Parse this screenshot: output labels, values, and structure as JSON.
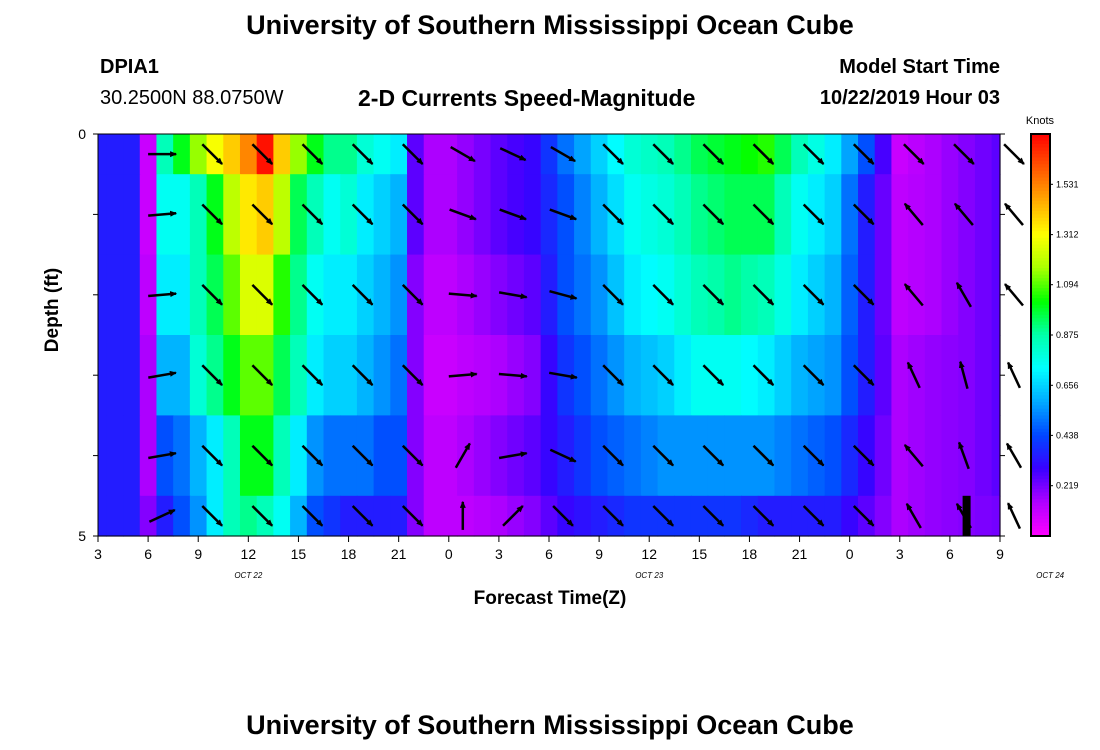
{
  "header": {
    "title": "University of Southern Mississippi Ocean Cube",
    "station_id": "DPIA1",
    "station_coords": "30.2500N 88.0750W",
    "plot_title": "2-D Currents Speed-Magnitude",
    "model_label": "Model Start Time",
    "model_time": "10/22/2019 Hour 03",
    "footer_title": "University of Southern Mississippi Ocean Cube"
  },
  "chart_data": {
    "type": "heatmap",
    "title": "2-D Currents Speed-Magnitude",
    "xlabel": "Forecast Time(Z)",
    "ylabel": "Depth (ft)",
    "colorbar_label": "Knots",
    "colorbar_ticks": [
      "1.531",
      "1.312",
      "1.094",
      "0.875",
      "0.656",
      "0.438",
      "0.219"
    ],
    "colorbar_range": [
      0,
      1.75
    ],
    "x_tick_labels": [
      "3",
      "6",
      "9",
      "12",
      "15",
      "18",
      "21",
      "0",
      "3",
      "6",
      "9",
      "12",
      "15",
      "18",
      "21",
      "0",
      "3",
      "6",
      "9"
    ],
    "x_range_hours": [
      3,
      57
    ],
    "date_labels": [
      {
        "label": "OCT 22",
        "hour": 12
      },
      {
        "label": "OCT 23",
        "hour": 36
      },
      {
        "label": "OCT 24",
        "hour": 60
      }
    ],
    "y_tick_labels": [
      "0",
      "5"
    ],
    "ylim": [
      0,
      5
    ],
    "depth_layers_ft": [
      0.25,
      1,
      2,
      3,
      4,
      4.75
    ],
    "time_hours": [
      3,
      4,
      5,
      6,
      7,
      8,
      9,
      10,
      11,
      12,
      13,
      14,
      15,
      16,
      17,
      18,
      19,
      20,
      21,
      22,
      23,
      24,
      25,
      26,
      27,
      28,
      29,
      30,
      31,
      32,
      33,
      34,
      35,
      36,
      37,
      38,
      39,
      40,
      41,
      42,
      43,
      44,
      45,
      46,
      47,
      48,
      49,
      50,
      51,
      52,
      53,
      54,
      55,
      56,
      57
    ],
    "speed_anchor_hours": [
      3,
      5,
      6,
      6.5,
      7,
      7.5,
      8,
      9,
      10,
      11,
      12,
      12.5,
      13,
      14,
      15,
      16,
      17,
      18,
      19,
      20,
      21,
      22,
      23,
      24,
      25,
      27,
      29,
      31,
      33,
      35,
      37,
      39,
      41,
      43,
      45,
      47,
      49,
      51,
      53,
      55,
      57
    ],
    "speed_knots": [
      [
        0.35,
        0.35,
        0.1,
        0.45,
        0.85,
        0.9,
        1.0,
        1.15,
        1.3,
        1.4,
        1.52,
        1.65,
        1.72,
        1.4,
        1.15,
        1.0,
        0.9,
        0.9,
        0.8,
        0.75,
        0.7,
        0.25,
        0.15,
        0.15,
        0.18,
        0.25,
        0.3,
        0.5,
        0.65,
        0.8,
        0.85,
        0.95,
        1.0,
        1.05,
        0.85,
        0.7,
        0.45,
        0.1,
        0.15,
        0.2,
        0.25
      ],
      [
        0.35,
        0.35,
        0.1,
        0.35,
        0.75,
        0.7,
        0.75,
        0.85,
        1.0,
        1.2,
        1.35,
        1.42,
        1.4,
        1.2,
        0.95,
        0.85,
        0.75,
        0.8,
        0.7,
        0.65,
        0.6,
        0.25,
        0.15,
        0.15,
        0.18,
        0.25,
        0.3,
        0.45,
        0.6,
        0.75,
        0.8,
        0.9,
        0.95,
        0.95,
        0.75,
        0.65,
        0.35,
        0.12,
        0.15,
        0.2,
        0.25
      ],
      [
        0.35,
        0.35,
        0.12,
        0.35,
        0.7,
        0.65,
        0.7,
        0.85,
        0.95,
        1.1,
        1.25,
        1.28,
        1.25,
        1.05,
        0.9,
        0.75,
        0.7,
        0.7,
        0.65,
        0.6,
        0.55,
        0.2,
        0.12,
        0.12,
        0.15,
        0.2,
        0.25,
        0.45,
        0.55,
        0.7,
        0.75,
        0.85,
        0.9,
        0.85,
        0.7,
        0.6,
        0.35,
        0.12,
        0.15,
        0.2,
        0.25
      ],
      [
        0.35,
        0.35,
        0.15,
        0.35,
        0.6,
        0.55,
        0.6,
        0.8,
        0.9,
        1.0,
        1.1,
        1.12,
        1.1,
        0.95,
        0.85,
        0.7,
        0.65,
        0.65,
        0.6,
        0.55,
        0.5,
        0.2,
        0.1,
        0.1,
        0.12,
        0.15,
        0.2,
        0.4,
        0.5,
        0.6,
        0.65,
        0.75,
        0.75,
        0.7,
        0.6,
        0.55,
        0.35,
        0.15,
        0.18,
        0.2,
        0.25
      ],
      [
        0.35,
        0.35,
        0.15,
        0.35,
        0.45,
        0.45,
        0.5,
        0.6,
        0.7,
        0.85,
        1.0,
        1.02,
        1.0,
        0.85,
        0.7,
        0.55,
        0.5,
        0.5,
        0.5,
        0.45,
        0.45,
        0.2,
        0.12,
        0.12,
        0.15,
        0.2,
        0.25,
        0.35,
        0.45,
        0.5,
        0.55,
        0.55,
        0.55,
        0.55,
        0.5,
        0.45,
        0.3,
        0.15,
        0.18,
        0.2,
        0.25
      ],
      [
        0.35,
        0.35,
        0.2,
        0.35,
        0.35,
        0.35,
        0.45,
        0.55,
        0.7,
        0.85,
        0.9,
        0.92,
        0.85,
        0.75,
        0.6,
        0.45,
        0.4,
        0.35,
        0.35,
        0.35,
        0.35,
        0.2,
        0.12,
        0.12,
        0.12,
        0.15,
        0.2,
        0.3,
        0.35,
        0.4,
        0.4,
        0.4,
        0.4,
        0.35,
        0.35,
        0.35,
        0.25,
        0.15,
        0.18,
        0.2,
        0.22
      ]
    ],
    "vector_hours": [
      6,
      9,
      12,
      15,
      18,
      21,
      24,
      27,
      30,
      33,
      36,
      39,
      42,
      45,
      48,
      51,
      54,
      57
    ],
    "vector_directions_deg": [
      [
        90,
        135,
        135,
        135,
        135,
        135,
        120,
        115,
        120,
        135,
        135,
        135,
        135,
        135,
        135,
        135,
        135,
        135
      ],
      [
        85,
        135,
        135,
        135,
        135,
        135,
        110,
        110,
        110,
        135,
        135,
        135,
        135,
        135,
        135,
        320,
        320,
        320
      ],
      [
        85,
        135,
        135,
        135,
        135,
        135,
        95,
        100,
        105,
        135,
        135,
        135,
        135,
        135,
        135,
        320,
        330,
        320
      ],
      [
        80,
        135,
        135,
        135,
        135,
        135,
        85,
        95,
        100,
        135,
        135,
        135,
        135,
        135,
        135,
        335,
        345,
        335
      ],
      [
        80,
        135,
        135,
        135,
        135,
        135,
        30,
        80,
        115,
        135,
        135,
        135,
        135,
        135,
        135,
        320,
        340,
        330
      ],
      [
        65,
        135,
        135,
        135,
        135,
        135,
        0,
        45,
        135,
        135,
        135,
        135,
        135,
        135,
        135,
        330,
        330,
        335
      ]
    ],
    "bar_marker": {
      "hour": 55,
      "depth_from": 4.5,
      "depth_to": 5
    }
  },
  "colors": {
    "scale": [
      "#ff00ff",
      "#b000ff",
      "#3a00ff",
      "#0046ff",
      "#00aaff",
      "#00ffff",
      "#00ffaa",
      "#00ff00",
      "#aaff00",
      "#ffff00",
      "#ffaa00",
      "#ff5500",
      "#ff0000"
    ],
    "arrow": "#000000",
    "frame": "#000000"
  }
}
